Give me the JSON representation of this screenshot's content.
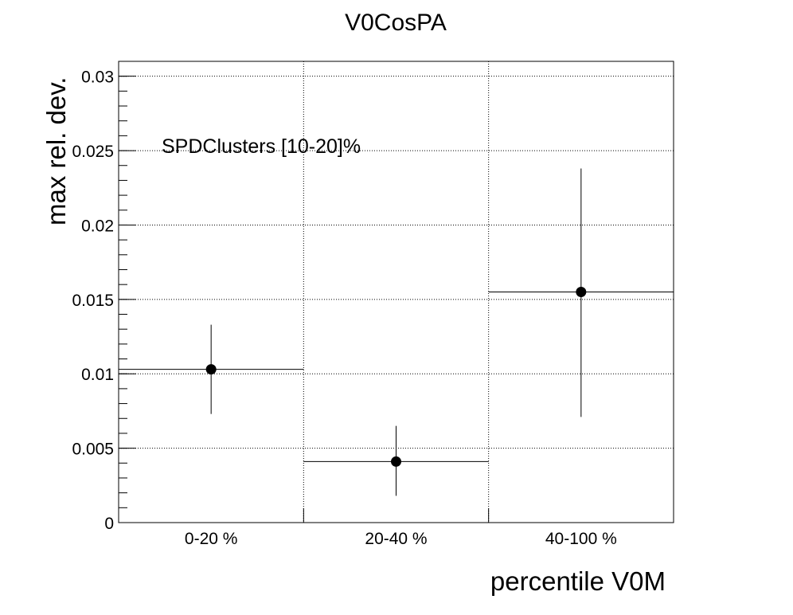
{
  "chart_data": {
    "type": "scatter",
    "title": "V0CosPA",
    "xlabel": "percentile V0M",
    "ylabel": "max rel. dev.",
    "annotation": "SPDClusters [10-20]%",
    "categories": [
      "0-20 %",
      "20-40 %",
      "40-100 %"
    ],
    "ylim": [
      0,
      0.031
    ],
    "yticks": [
      0,
      0.005,
      0.01,
      0.015,
      0.02,
      0.025,
      0.03
    ],
    "ytick_labels": [
      "0",
      "0.005",
      "0.01",
      "0.015",
      "0.02",
      "0.025",
      "0.03"
    ],
    "grid": true,
    "series": [
      {
        "values": [
          0.0103,
          0.0041,
          0.0155
        ],
        "err_low": [
          0.003,
          0.0023,
          0.0084
        ],
        "err_high": [
          0.003,
          0.0024,
          0.0083
        ]
      }
    ]
  }
}
